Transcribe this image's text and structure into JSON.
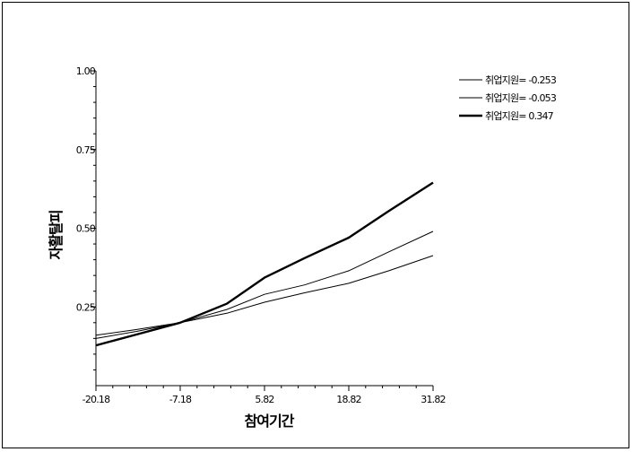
{
  "chart_data": {
    "type": "line",
    "title": "",
    "xlabel": "참여기간",
    "ylabel": "자활탈피",
    "xlim": [
      -20.18,
      31.82
    ],
    "ylim": [
      0,
      1.0
    ],
    "x_ticks": [
      "-20.18",
      "-7.18",
      "5.82",
      "18.82",
      "31.82"
    ],
    "y_ticks": [
      "0.25",
      "0.50",
      "0.75",
      "1.00"
    ],
    "grid": false,
    "legend_position": "top-right",
    "series": [
      {
        "name": "취업지원= -0.253",
        "stroke_width": 1,
        "x": [
          -20.18,
          -14,
          -7.18,
          0,
          5.82,
          12,
          18.82,
          25,
          31.82
        ],
        "y": [
          0.16,
          0.178,
          0.2,
          0.23,
          0.265,
          0.295,
          0.325,
          0.365,
          0.413
        ]
      },
      {
        "name": "취업지원= -0.053",
        "stroke_width": 1,
        "x": [
          -20.18,
          -14,
          -7.18,
          0,
          5.82,
          12,
          18.82,
          25,
          31.82
        ],
        "y": [
          0.15,
          0.172,
          0.2,
          0.242,
          0.29,
          0.32,
          0.365,
          0.425,
          0.49
        ]
      },
      {
        "name": "취업지원= 0.347",
        "stroke_width": 2.4,
        "x": [
          -20.18,
          -14,
          -7.18,
          0,
          5.82,
          12,
          18.82,
          25,
          31.82
        ],
        "y": [
          0.128,
          0.162,
          0.2,
          0.26,
          0.343,
          0.405,
          0.47,
          0.555,
          0.645
        ]
      }
    ]
  }
}
